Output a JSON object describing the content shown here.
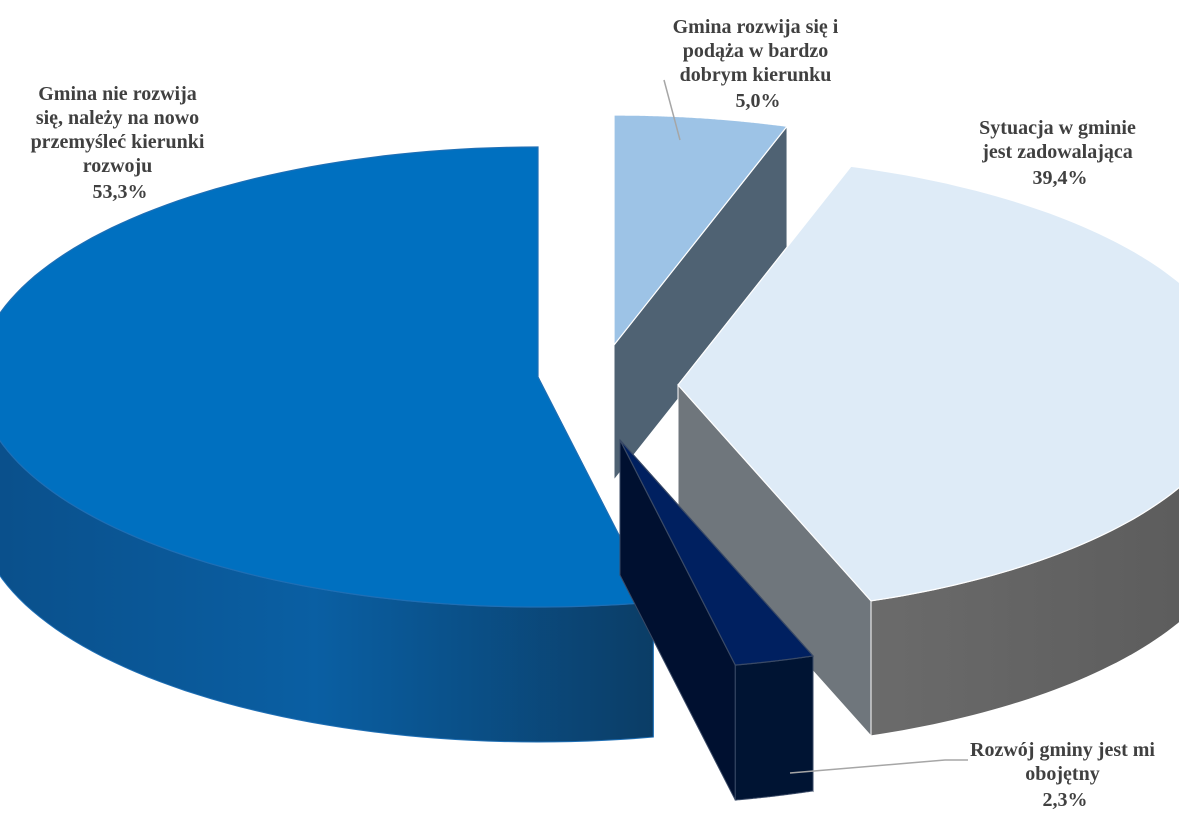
{
  "chart_data": {
    "type": "pie",
    "style": "3d-exploded",
    "title": "",
    "series": [
      {
        "name": "",
        "values": [
          53.3,
          5.0,
          39.4,
          2.3
        ],
        "slices": [
          {
            "label_lines": [
              "Gmina nie rozwija",
              "się, należy na nowo",
              "przemyśleć kierunki",
              "rozwoju"
            ],
            "percent": "53,3%",
            "value": 53.3,
            "color": "#0070C0"
          },
          {
            "label_lines": [
              "Gmina rozwija się i",
              "podąża w bardzo",
              "dobrym kierunku"
            ],
            "percent": "5,0%",
            "value": 5.0,
            "color": "#9DC3E6"
          },
          {
            "label_lines": [
              "Sytuacja w gminie",
              "jest zadowalająca"
            ],
            "percent": "39,4%",
            "value": 39.4,
            "color": "#DEEBF7"
          },
          {
            "label_lines": [
              "Rozwój gminy jest mi",
              "obojętny"
            ],
            "percent": "2,3%",
            "value": 2.3,
            "color": "#002060"
          }
        ]
      }
    ],
    "legend": "none",
    "data_labels": "category-and-percent"
  }
}
